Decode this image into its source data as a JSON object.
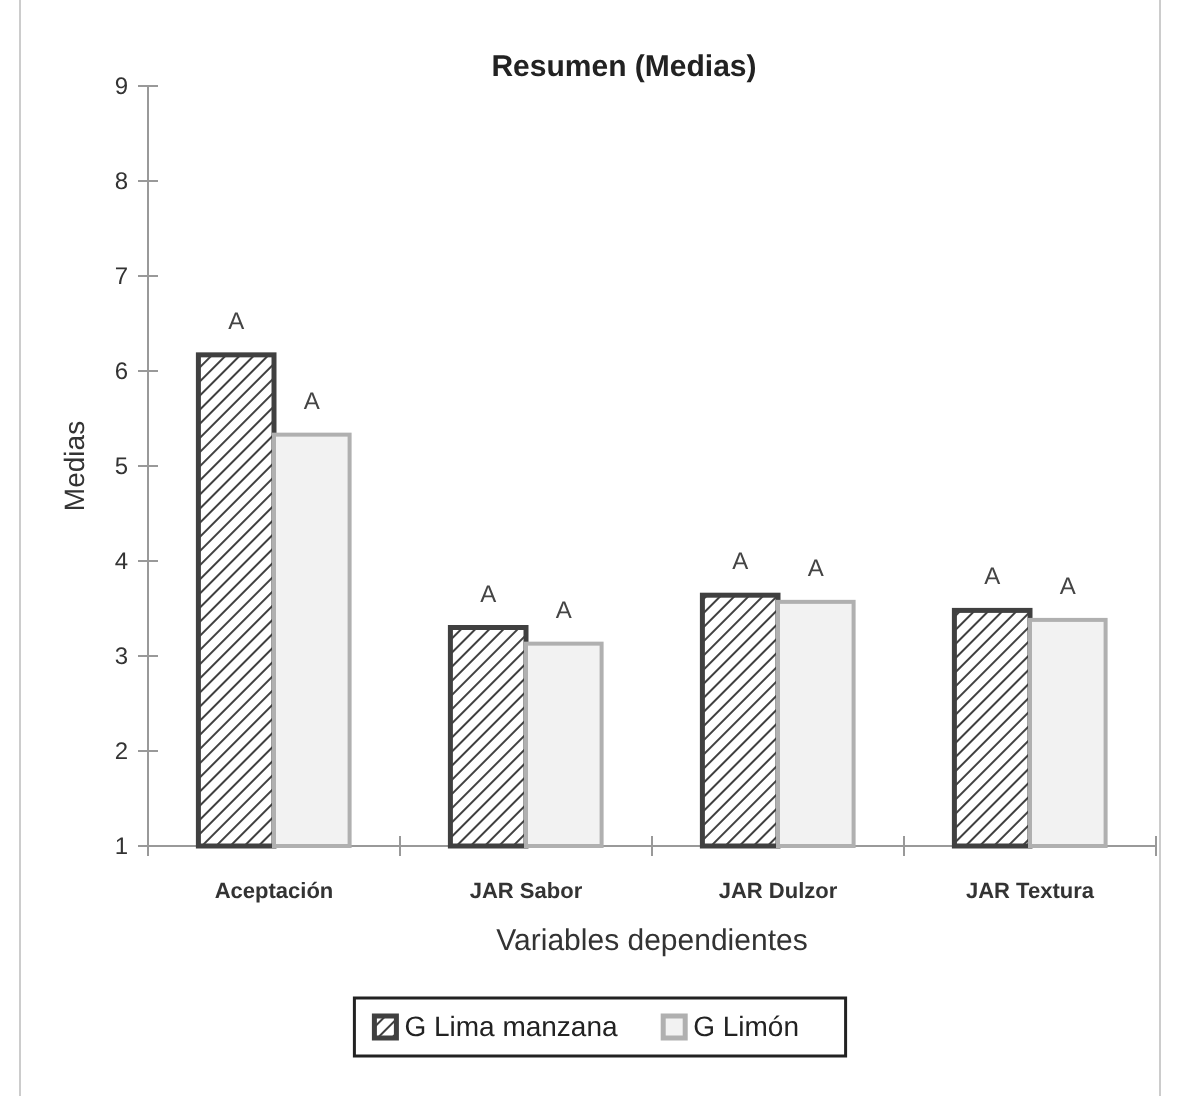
{
  "chart_data": {
    "type": "bar",
    "title": "Resumen (Medias)",
    "xlabel": "Variables dependientes",
    "ylabel": "Medias",
    "categories": [
      "Aceptación",
      "JAR Sabor",
      "JAR Dulzor",
      "JAR Textura"
    ],
    "series": [
      {
        "name": "G Lima manzana",
        "color": "#404040",
        "values": [
          6.17,
          3.3,
          3.64,
          3.48
        ],
        "value_labels": [
          "A",
          "A",
          "A",
          "A"
        ]
      },
      {
        "name": "G Limón",
        "color": "#b0b0b0",
        "values": [
          5.33,
          3.13,
          3.57,
          3.38
        ],
        "value_labels": [
          "A",
          "A",
          "A",
          "A"
        ]
      }
    ],
    "ylim": [
      1,
      9
    ],
    "yticks": [
      1,
      2,
      3,
      4,
      5,
      6,
      7,
      8,
      9
    ],
    "legend": "bottom"
  }
}
